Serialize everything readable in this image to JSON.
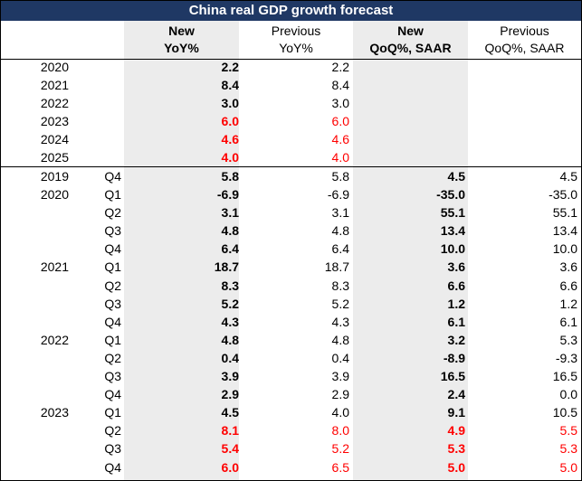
{
  "title": "China real GDP growth forecast",
  "headers": {
    "new_yoy": [
      "New",
      "YoY%"
    ],
    "prev_yoy": [
      "Previous",
      "YoY%"
    ],
    "new_qoq": [
      "New",
      "QoQ%, SAAR"
    ],
    "prev_qoq": [
      "Previous",
      "QoQ%, SAAR"
    ]
  },
  "colors": {
    "title_bg": "#1f3864",
    "highlight": "#ff0000",
    "shade": "#ececec"
  },
  "annual": [
    {
      "year": "2020",
      "new_yoy": "2.2",
      "prev_yoy": "2.2",
      "red": false
    },
    {
      "year": "2021",
      "new_yoy": "8.4",
      "prev_yoy": "8.4",
      "red": false
    },
    {
      "year": "2022",
      "new_yoy": "3.0",
      "prev_yoy": "3.0",
      "red": false
    },
    {
      "year": "2023",
      "new_yoy": "6.0",
      "prev_yoy": "6.0",
      "red": true
    },
    {
      "year": "2024",
      "new_yoy": "4.6",
      "prev_yoy": "4.6",
      "red": true
    },
    {
      "year": "2025",
      "new_yoy": "4.0",
      "prev_yoy": "4.0",
      "red": true
    }
  ],
  "quarterly": [
    {
      "year": "2019",
      "q": "Q4",
      "new_yoy": "5.8",
      "prev_yoy": "5.8",
      "new_qoq": "4.5",
      "prev_qoq": "4.5",
      "red": false
    },
    {
      "year": "2020",
      "q": "Q1",
      "new_yoy": "-6.9",
      "prev_yoy": "-6.9",
      "new_qoq": "-35.0",
      "prev_qoq": "-35.0",
      "red": false
    },
    {
      "year": "",
      "q": "Q2",
      "new_yoy": "3.1",
      "prev_yoy": "3.1",
      "new_qoq": "55.1",
      "prev_qoq": "55.1",
      "red": false
    },
    {
      "year": "",
      "q": "Q3",
      "new_yoy": "4.8",
      "prev_yoy": "4.8",
      "new_qoq": "13.4",
      "prev_qoq": "13.4",
      "red": false
    },
    {
      "year": "",
      "q": "Q4",
      "new_yoy": "6.4",
      "prev_yoy": "6.4",
      "new_qoq": "10.0",
      "prev_qoq": "10.0",
      "red": false
    },
    {
      "year": "2021",
      "q": "Q1",
      "new_yoy": "18.7",
      "prev_yoy": "18.7",
      "new_qoq": "3.6",
      "prev_qoq": "3.6",
      "red": false
    },
    {
      "year": "",
      "q": "Q2",
      "new_yoy": "8.3",
      "prev_yoy": "8.3",
      "new_qoq": "6.6",
      "prev_qoq": "6.6",
      "red": false
    },
    {
      "year": "",
      "q": "Q3",
      "new_yoy": "5.2",
      "prev_yoy": "5.2",
      "new_qoq": "1.2",
      "prev_qoq": "1.2",
      "red": false
    },
    {
      "year": "",
      "q": "Q4",
      "new_yoy": "4.3",
      "prev_yoy": "4.3",
      "new_qoq": "6.1",
      "prev_qoq": "6.1",
      "red": false
    },
    {
      "year": "2022",
      "q": "Q1",
      "new_yoy": "4.8",
      "prev_yoy": "4.8",
      "new_qoq": "3.2",
      "prev_qoq": "5.3",
      "red": false
    },
    {
      "year": "",
      "q": "Q2",
      "new_yoy": "0.4",
      "prev_yoy": "0.4",
      "new_qoq": "-8.9",
      "prev_qoq": "-9.3",
      "red": false
    },
    {
      "year": "",
      "q": "Q3",
      "new_yoy": "3.9",
      "prev_yoy": "3.9",
      "new_qoq": "16.5",
      "prev_qoq": "16.5",
      "red": false
    },
    {
      "year": "",
      "q": "Q4",
      "new_yoy": "2.9",
      "prev_yoy": "2.9",
      "new_qoq": "2.4",
      "prev_qoq": "0.0",
      "red": false
    },
    {
      "year": "2023",
      "q": "Q1",
      "new_yoy": "4.5",
      "prev_yoy": "4.0",
      "new_qoq": "9.1",
      "prev_qoq": "10.5",
      "red": false
    },
    {
      "year": "",
      "q": "Q2",
      "new_yoy": "8.1",
      "prev_yoy": "8.0",
      "new_qoq": "4.9",
      "prev_qoq": "5.5",
      "red": true
    },
    {
      "year": "",
      "q": "Q3",
      "new_yoy": "5.4",
      "prev_yoy": "5.2",
      "new_qoq": "5.3",
      "prev_qoq": "5.3",
      "red": true
    },
    {
      "year": "",
      "q": "Q4",
      "new_yoy": "6.0",
      "prev_yoy": "6.5",
      "new_qoq": "5.0",
      "prev_qoq": "5.0",
      "red": true
    }
  ]
}
